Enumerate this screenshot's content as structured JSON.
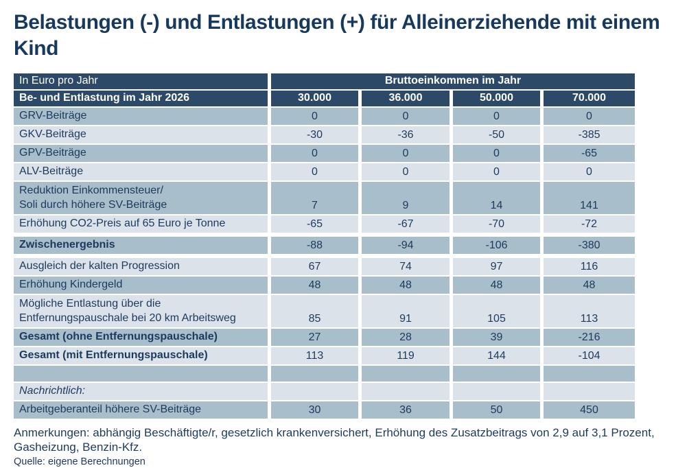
{
  "title": "Belastungen (-) und Entlastungen (+) für Alleinerziehende mit einem Kind",
  "colors": {
    "header_bg": "#2c4a68",
    "row_dark": "#a9becb",
    "row_light": "#dbe2e9",
    "text": "#1c3a5e"
  },
  "table": {
    "unit_label": "In Euro pro Jahr",
    "group_header": "Bruttoeinkommen im Jahr",
    "row_header": "Be- und Entlastung im Jahr 2026",
    "columns": [
      "30.000",
      "36.000",
      "50.000",
      "70.000"
    ],
    "rows": [
      {
        "label": "GRV-Beiträge",
        "values": [
          "0",
          "0",
          "0",
          "0"
        ],
        "shade": "dark"
      },
      {
        "label": "GKV-Beiträge",
        "values": [
          "-30",
          "-36",
          "-50",
          "-385"
        ],
        "shade": "light"
      },
      {
        "label": "GPV-Beiträge",
        "values": [
          "0",
          "0",
          "0",
          "-65"
        ],
        "shade": "dark"
      },
      {
        "label": "ALV-Beiträge",
        "values": [
          "0",
          "0",
          "0",
          "0"
        ],
        "shade": "light"
      },
      {
        "label": "Reduktion Einkommensteuer/\nSoli durch höhere SV-Beiträge",
        "values": [
          "7",
          "9",
          "14",
          "141"
        ],
        "shade": "dark",
        "twoline": true
      },
      {
        "label": "Erhöhung CO2-Preis auf 65 Euro je Tonne",
        "values": [
          "-65",
          "-67",
          "-70",
          "-72"
        ],
        "shade": "light"
      },
      {
        "label": "Zwischenergebnis",
        "values": [
          "-88",
          "-94",
          "-106",
          "-380"
        ],
        "shade": "dark",
        "bold": true,
        "gap_before": true,
        "gap_after": true
      },
      {
        "label": "Ausgleich der kalten Progression",
        "values": [
          "67",
          "74",
          "97",
          "116"
        ],
        "shade": "light"
      },
      {
        "label": "Erhöhung Kindergeld",
        "values": [
          "48",
          "48",
          "48",
          "48"
        ],
        "shade": "dark"
      },
      {
        "label": "Mögliche Entlastung über die\nEntfernungspauschale bei 20 km Arbeitsweg",
        "values": [
          "85",
          "91",
          "105",
          "113"
        ],
        "shade": "light",
        "twoline": true
      },
      {
        "label": "Gesamt (ohne Entfernungspauschale)",
        "values": [
          "27",
          "28",
          "39",
          "-216"
        ],
        "shade": "dark",
        "bold": true
      },
      {
        "label": "Gesamt (mit Entfernungspauschale)",
        "values": [
          "113",
          "119",
          "144",
          "-104"
        ],
        "shade": "light",
        "bold": true
      },
      {
        "label": "",
        "values": [
          "",
          "",
          "",
          ""
        ],
        "shade": "dark"
      },
      {
        "label": "Nachrichtlich:",
        "values": [
          "",
          "",
          "",
          ""
        ],
        "shade": "light",
        "italic": true
      },
      {
        "label": "Arbeitgeberanteil höhere SV-Beiträge",
        "values": [
          "30",
          "36",
          "50",
          "450"
        ],
        "shade": "dark"
      }
    ]
  },
  "notes": "Anmerkungen: abhängig Beschäftigte/r, gesetzlich krankenversichert, Erhöhung des Zusatzbeitrags von 2,9 auf 3,1 Prozent, Gasheizung, Benzin-Kfz.",
  "source": "Quelle: eigene Berechnungen",
  "chart_data": {
    "type": "table",
    "title": "Belastungen (-) und Entlastungen (+) für Alleinerziehende mit einem Kind",
    "unit": "In Euro pro Jahr",
    "column_group_label": "Bruttoeinkommen im Jahr",
    "row_dimension_label": "Be- und Entlastung im Jahr 2026",
    "columns": [
      30000,
      36000,
      50000,
      70000
    ],
    "rows": [
      {
        "label": "GRV-Beiträge",
        "values": [
          0,
          0,
          0,
          0
        ]
      },
      {
        "label": "GKV-Beiträge",
        "values": [
          -30,
          -36,
          -50,
          -385
        ]
      },
      {
        "label": "GPV-Beiträge",
        "values": [
          0,
          0,
          0,
          -65
        ]
      },
      {
        "label": "ALV-Beiträge",
        "values": [
          0,
          0,
          0,
          0
        ]
      },
      {
        "label": "Reduktion Einkommensteuer/ Soli durch höhere SV-Beiträge",
        "values": [
          7,
          9,
          14,
          141
        ]
      },
      {
        "label": "Erhöhung CO2-Preis auf 65 Euro je Tonne",
        "values": [
          -65,
          -67,
          -70,
          -72
        ]
      },
      {
        "label": "Zwischenergebnis",
        "values": [
          -88,
          -94,
          -106,
          -380
        ]
      },
      {
        "label": "Ausgleich der kalten Progression",
        "values": [
          67,
          74,
          97,
          116
        ]
      },
      {
        "label": "Erhöhung Kindergeld",
        "values": [
          48,
          48,
          48,
          48
        ]
      },
      {
        "label": "Mögliche Entlastung über die Entfernungspauschale bei 20 km Arbeitsweg",
        "values": [
          85,
          91,
          105,
          113
        ]
      },
      {
        "label": "Gesamt (ohne Entfernungspauschale)",
        "values": [
          27,
          28,
          39,
          -216
        ]
      },
      {
        "label": "Gesamt (mit Entfernungspauschale)",
        "values": [
          113,
          119,
          144,
          -104
        ]
      },
      {
        "label": "Nachrichtlich: Arbeitgeberanteil höhere SV-Beiträge",
        "values": [
          30,
          36,
          50,
          450
        ]
      }
    ]
  }
}
